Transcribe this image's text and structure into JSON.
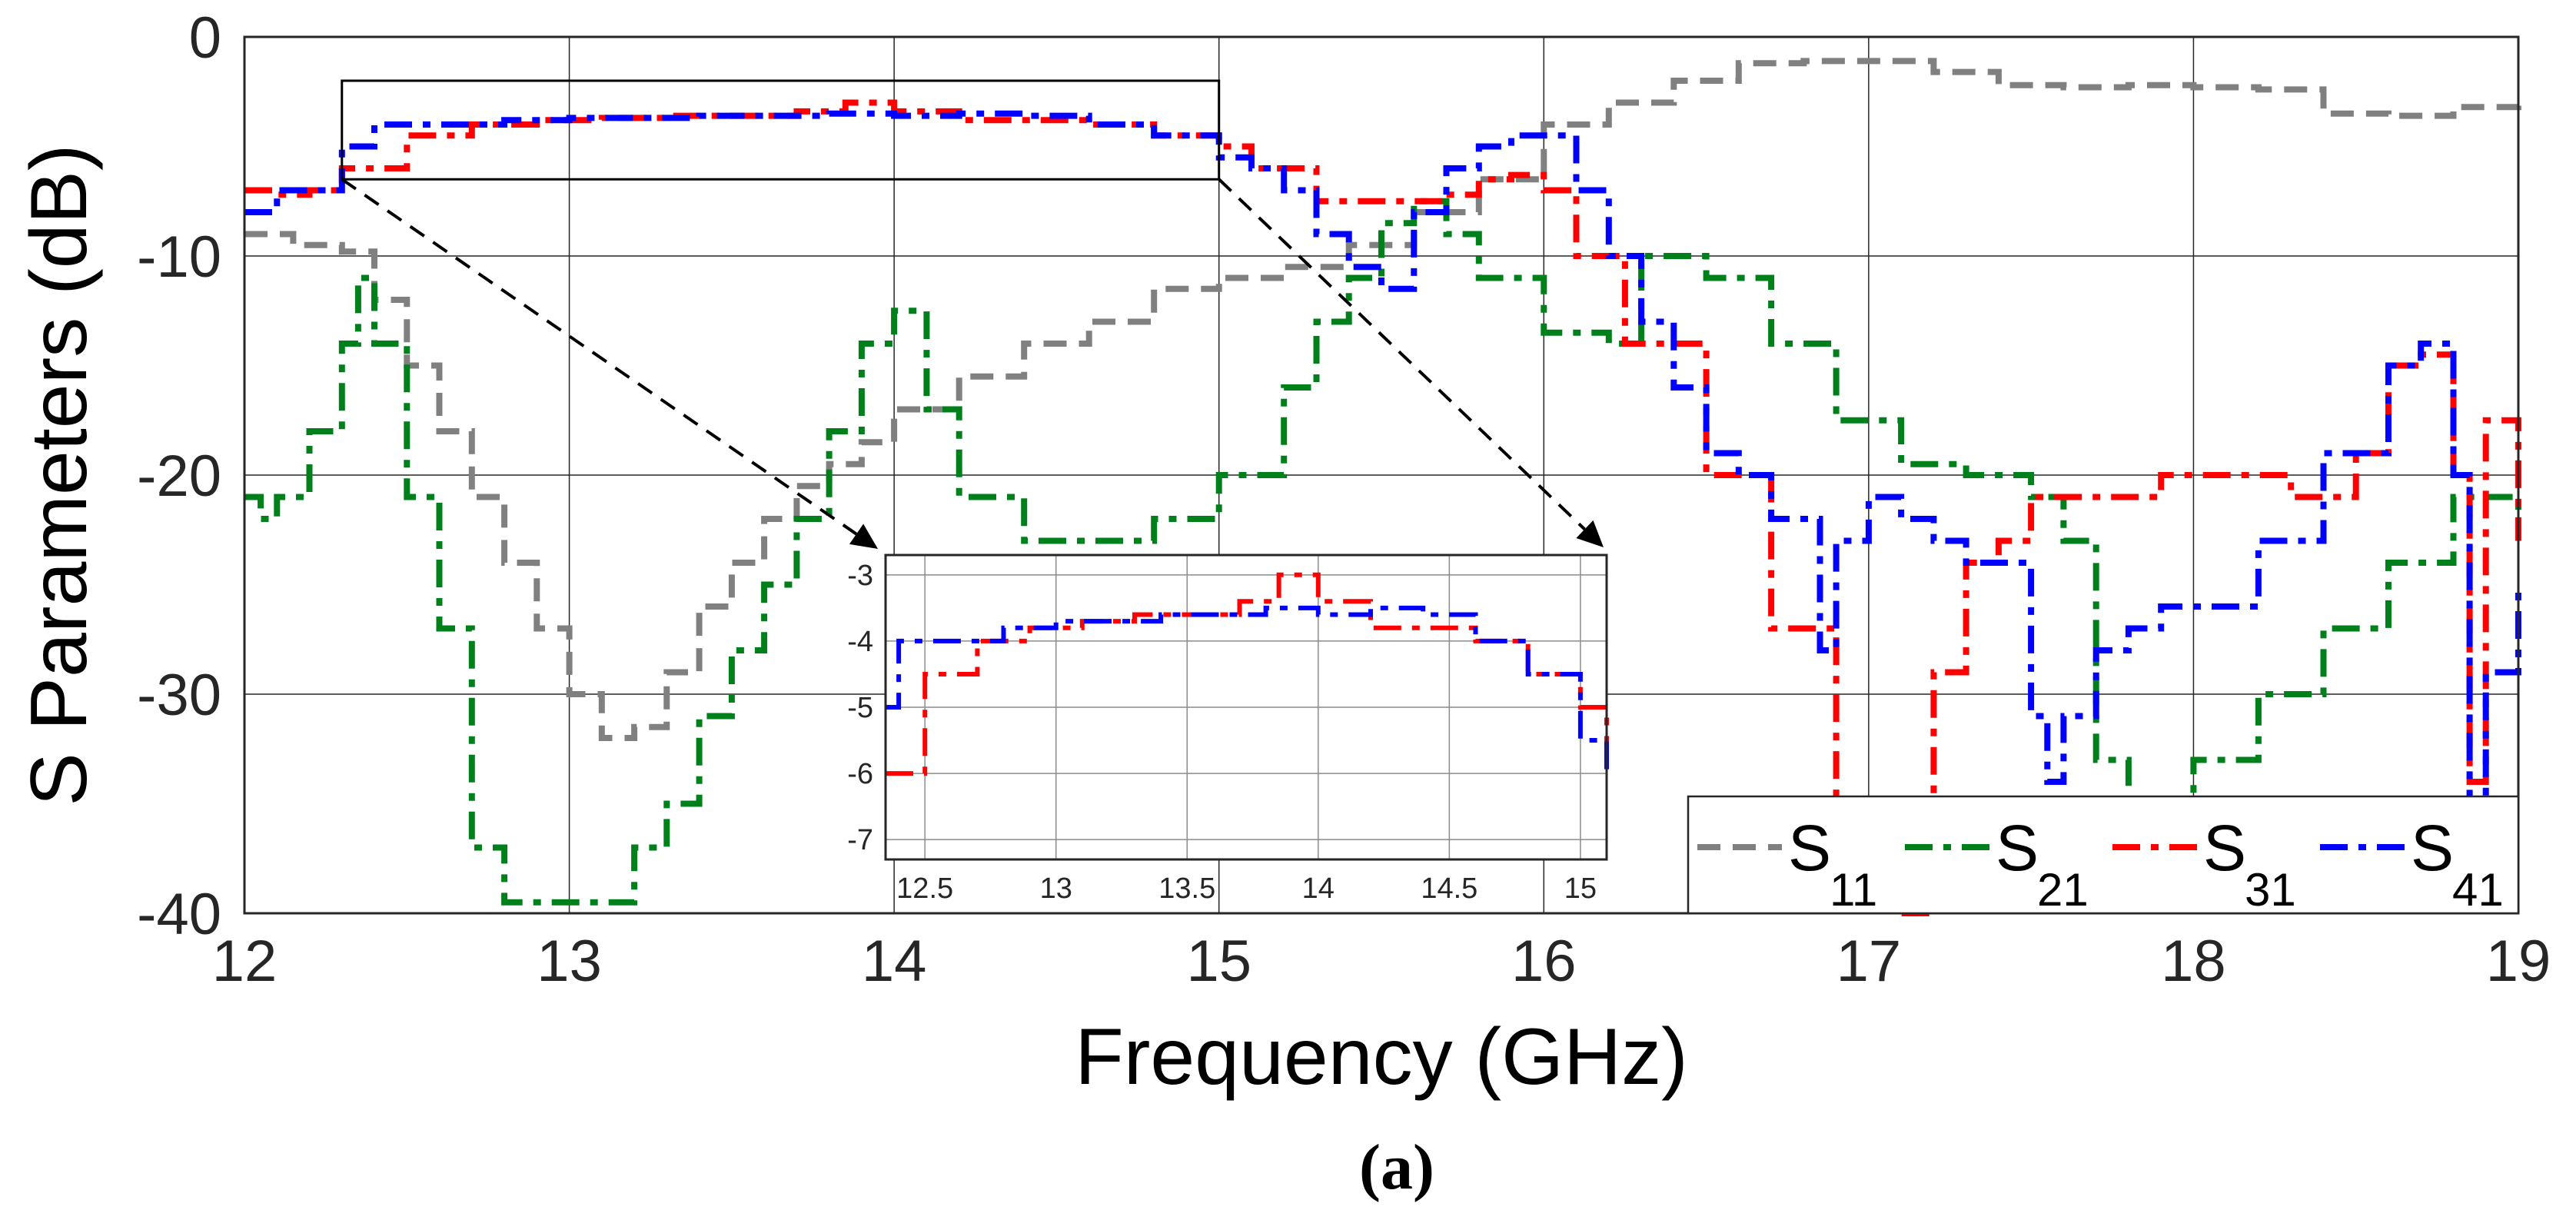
{
  "chart_data": {
    "type": "line",
    "title": "",
    "xlabel": "Frequency (GHz)",
    "ylabel": "S Parameters (dB)",
    "xlim": [
      12,
      19
    ],
    "ylim": [
      -40,
      0
    ],
    "xticks": [
      "12",
      "13",
      "14",
      "15",
      "16",
      "17",
      "18",
      "19"
    ],
    "yticks": [
      "0",
      "-10",
      "-20",
      "-30",
      "-40"
    ],
    "grid": true,
    "legend_position": "bottom-right",
    "caption": "(a)",
    "series": [
      {
        "name": "S11",
        "legend_main": "S",
        "legend_sub": "11",
        "color": "#808080",
        "dash": "dashed",
        "x": [
          12.0,
          12.15,
          12.3,
          12.4,
          12.5,
          12.6,
          12.7,
          12.8,
          12.9,
          13.0,
          13.1,
          13.2,
          13.3,
          13.4,
          13.5,
          13.6,
          13.7,
          13.8,
          13.9,
          14.0,
          14.2,
          14.4,
          14.6,
          14.8,
          15.0,
          15.2,
          15.4,
          15.6,
          15.8,
          16.0,
          16.2,
          16.4,
          16.6,
          16.8,
          17.0,
          17.2,
          17.4,
          17.6,
          17.8,
          18.0,
          18.2,
          18.4,
          18.6,
          18.8,
          19.0
        ],
        "y": [
          -9,
          -9.5,
          -9.8,
          -12,
          -15,
          -18,
          -21,
          -24,
          -27,
          -30,
          -32,
          -31.5,
          -29,
          -26,
          -24,
          -22,
          -20.5,
          -19.5,
          -18.5,
          -17,
          -15.5,
          -14,
          -13,
          -11.5,
          -11,
          -10.5,
          -9.5,
          -8,
          -6.5,
          -4,
          -3,
          -2,
          -1.2,
          -1.1,
          -1.1,
          -1.6,
          -2.2,
          -2.3,
          -2.2,
          -2.3,
          -2.4,
          -3.5,
          -3.6,
          -3.2,
          -2.8
        ]
      },
      {
        "name": "S21",
        "legend_main": "S",
        "legend_sub": "21",
        "color": "#00801a",
        "dash": "dashdot",
        "x": [
          12.0,
          12.05,
          12.1,
          12.2,
          12.3,
          12.35,
          12.4,
          12.5,
          12.6,
          12.7,
          12.8,
          13.0,
          13.1,
          13.2,
          13.3,
          13.4,
          13.5,
          13.6,
          13.7,
          13.8,
          13.9,
          14.0,
          14.1,
          14.2,
          14.4,
          14.6,
          14.8,
          15.0,
          15.2,
          15.3,
          15.4,
          15.5,
          15.6,
          15.7,
          15.8,
          16.0,
          16.2,
          16.3,
          16.5,
          16.7,
          16.9,
          17.1,
          17.3,
          17.5,
          17.6,
          17.7,
          17.8,
          18.0,
          18.2,
          18.4,
          18.6,
          18.8,
          19.0
        ],
        "y": [
          -21,
          -22,
          -21,
          -18,
          -14,
          -11,
          -14,
          -21,
          -27,
          -37,
          -39.5,
          -39.5,
          -39.5,
          -37,
          -35,
          -31,
          -28,
          -25,
          -22,
          -18,
          -14,
          -12.5,
          -17,
          -21,
          -23,
          -23,
          -22,
          -20,
          -16,
          -13,
          -11,
          -8.5,
          -7.5,
          -9,
          -11,
          -13.5,
          -14,
          -10,
          -11,
          -14,
          -17.5,
          -19.5,
          -20,
          -21,
          -23,
          -33,
          -37,
          -33,
          -30,
          -27,
          -24,
          -21,
          -22
        ]
      },
      {
        "name": "S31",
        "legend_main": "S",
        "legend_sub": "31",
        "color": "#ff0000",
        "dash": "dashdot",
        "x": [
          12.0,
          12.1,
          12.2,
          12.3,
          12.5,
          12.7,
          12.9,
          13.1,
          13.3,
          13.5,
          13.7,
          13.85,
          14.0,
          14.2,
          14.4,
          14.6,
          14.8,
          15.0,
          15.1,
          15.3,
          15.5,
          15.7,
          15.8,
          15.9,
          16.0,
          16.1,
          16.25,
          16.5,
          16.7,
          16.9,
          17.1,
          17.2,
          17.3,
          17.4,
          17.5,
          17.7,
          17.9,
          18.1,
          18.3,
          18.5,
          18.6,
          18.7,
          18.8,
          18.85,
          18.9,
          19.0
        ],
        "y": [
          -7,
          -7.2,
          -7,
          -6,
          -4.5,
          -4,
          -3.8,
          -3.7,
          -3.6,
          -3.6,
          -3.4,
          -3,
          -3.4,
          -3.8,
          -3.8,
          -4,
          -4.5,
          -5,
          -6,
          -7.5,
          -7.5,
          -7.2,
          -6.5,
          -6.3,
          -7,
          -10,
          -14,
          -20,
          -27,
          -38,
          -40,
          -29,
          -24,
          -23,
          -21,
          -21,
          -20,
          -20,
          -21,
          -19,
          -15,
          -14.5,
          -20,
          -34,
          -17.5,
          -23
        ]
      },
      {
        "name": "S41",
        "legend_main": "S",
        "legend_sub": "41",
        "color": "#0000ff",
        "dash": "dashdot",
        "x": [
          12.0,
          12.1,
          12.2,
          12.3,
          12.4,
          12.6,
          12.8,
          13.0,
          13.2,
          13.4,
          13.6,
          13.8,
          14.0,
          14.2,
          14.4,
          14.6,
          14.8,
          15.0,
          15.1,
          15.2,
          15.3,
          15.4,
          15.5,
          15.6,
          15.7,
          15.8,
          15.9,
          16.0,
          16.1,
          16.2,
          16.3,
          16.4,
          16.5,
          16.6,
          16.7,
          16.85,
          16.9,
          17.0,
          17.1,
          17.2,
          17.3,
          17.5,
          17.55,
          17.6,
          17.7,
          17.8,
          17.9,
          18.0,
          18.2,
          18.4,
          18.6,
          18.7,
          18.8,
          18.85,
          18.9,
          19.0
        ],
        "y": [
          -8,
          -7,
          -7,
          -5,
          -4,
          -4,
          -3.8,
          -3.7,
          -3.7,
          -3.6,
          -3.6,
          -3.5,
          -3.6,
          -3.5,
          -3.6,
          -4,
          -4.5,
          -5.5,
          -6,
          -7,
          -9,
          -10.5,
          -11.5,
          -8,
          -6,
          -5,
          -4.5,
          -4.5,
          -7,
          -10,
          -13,
          -16,
          -19,
          -20,
          -22,
          -28,
          -23,
          -21,
          -22,
          -23,
          -24,
          -31,
          -34,
          -31,
          -28,
          -27,
          -26,
          -26,
          -23,
          -19,
          -15,
          -14,
          -20,
          -35,
          -29,
          -25
        ]
      }
    ],
    "inset": {
      "xlim": [
        12.35,
        15.1
      ],
      "ylim": [
        -7.3,
        -2.7
      ],
      "xticks": [
        "12.5",
        "13",
        "13.5",
        "14",
        "14.5",
        "15"
      ],
      "yticks": [
        "-3",
        "-4",
        "-5",
        "-6",
        "-7"
      ],
      "zoom_region": {
        "x": [
          12.3,
          15.0
        ],
        "y": [
          -6.5,
          -2
        ]
      }
    }
  }
}
